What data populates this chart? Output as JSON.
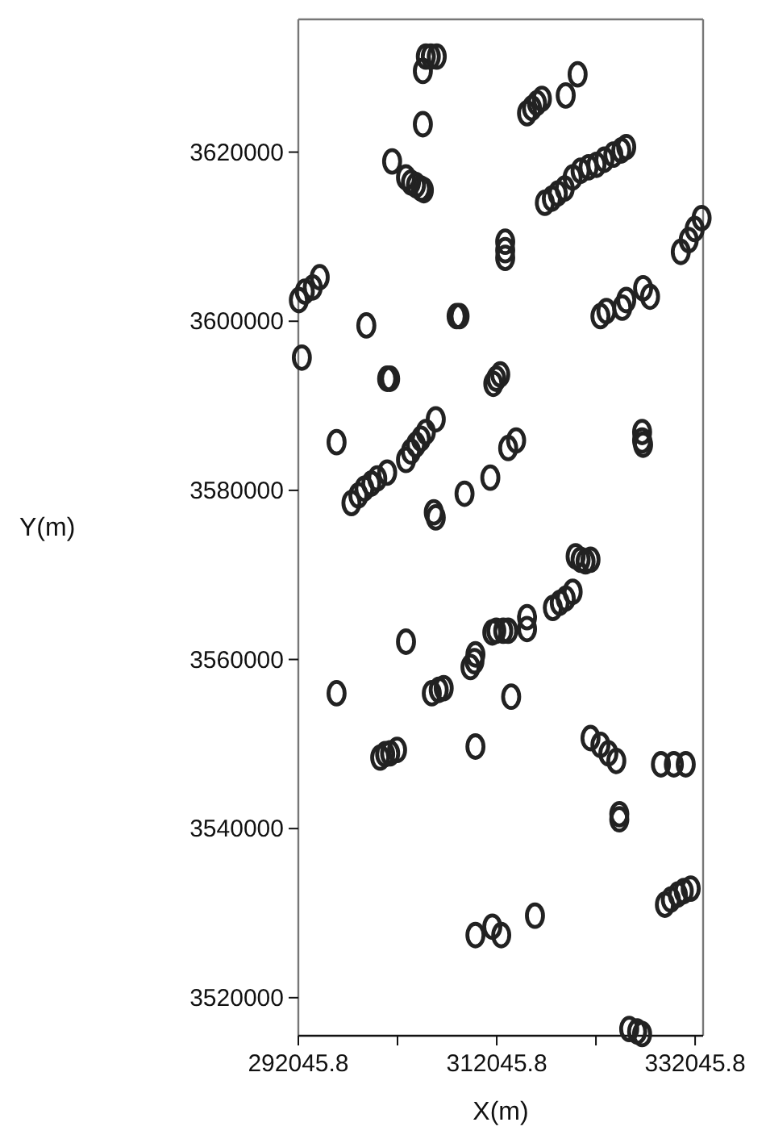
{
  "chart_data": {
    "type": "scatter",
    "xlabel": "X(m)",
    "ylabel": "Y(m)",
    "marker": "circle",
    "grid": false,
    "xlim": [
      292045.8,
      332850
    ],
    "ylim": [
      3515500,
      3635700
    ],
    "xticks": [
      292045.8,
      {
        "value": 302045.8,
        "label": null
      },
      312045.8,
      {
        "value": 322045.8,
        "label": null
      },
      332045.8
    ],
    "yticks": [
      3520000,
      3540000,
      3560000,
      3580000,
      3600000,
      3620000
    ],
    "series": [
      {
        "color": "#222222",
        "x": [
          304600,
          304900,
          305400,
          306000,
          304600,
          301500,
          302900,
          303400,
          303900,
          304400,
          304700,
          315100,
          315600,
          316100,
          316600,
          319000,
          320200,
          316900,
          317600,
          318200,
          318900,
          319700,
          320500,
          321300,
          322100,
          322900,
          323800,
          324600,
          325100,
          312900,
          312900,
          312900,
          292100,
          292700,
          293500,
          294200,
          298900,
          292400,
          308000,
          308300,
          301000,
          301300,
          311700,
          312000,
          312400,
          322500,
          323100,
          324700,
          325100,
          326800,
          327500,
          330600,
          331400,
          332000,
          332700,
          326700,
          326700,
          326800,
          295900,
          305900,
          302900,
          303400,
          303900,
          304400,
          304900,
          301000,
          297400,
          298100,
          298700,
          299400,
          300000,
          305700,
          305900,
          308800,
          311400,
          313200,
          314000,
          320000,
          320500,
          321000,
          321500,
          317700,
          318400,
          319000,
          319700,
          315100,
          315100,
          311600,
          312000,
          312700,
          313200,
          309400,
          309800,
          309900,
          305500,
          306200,
          306700,
          302900,
          295900,
          313500,
          300300,
          300800,
          301300,
          302000,
          309900,
          321500,
          322500,
          323300,
          324100,
          328600,
          329900,
          331100,
          324400,
          324400,
          329000,
          329600,
          330300,
          330900,
          331600,
          309900,
          311600,
          312500,
          315900,
          325400,
          326200,
          326700
        ],
        "values": [
          3629600,
          3631300,
          3631300,
          3631300,
          3623300,
          3618900,
          3617000,
          3616400,
          3616100,
          3615700,
          3615500,
          3624600,
          3625200,
          3625800,
          3626300,
          3626700,
          3629200,
          3614000,
          3614500,
          3615100,
          3615700,
          3617000,
          3617800,
          3618200,
          3618500,
          3619100,
          3619700,
          3620200,
          3620600,
          3609400,
          3608400,
          3607500,
          3602500,
          3603500,
          3604000,
          3605200,
          3599500,
          3595700,
          3600600,
          3600600,
          3593200,
          3593200,
          3592600,
          3593200,
          3593700,
          3600600,
          3601200,
          3601600,
          3602500,
          3603900,
          3602900,
          3608200,
          3609600,
          3610900,
          3612200,
          3586900,
          3585900,
          3585400,
          3585700,
          3588400,
          3583600,
          3584600,
          3585400,
          3586100,
          3586900,
          3582100,
          3578500,
          3579400,
          3580200,
          3580800,
          3581400,
          3577400,
          3576800,
          3579600,
          3581500,
          3585000,
          3585900,
          3572200,
          3571800,
          3571600,
          3571800,
          3566100,
          3566700,
          3567200,
          3568000,
          3565000,
          3563600,
          3563200,
          3563400,
          3563400,
          3563400,
          3559100,
          3559800,
          3560600,
          3556000,
          3556400,
          3556600,
          3562100,
          3556000,
          3555600,
          3548400,
          3548800,
          3548900,
          3549300,
          3549700,
          3550700,
          3549900,
          3548900,
          3548000,
          3547600,
          3547600,
          3547600,
          3541700,
          3541100,
          3531000,
          3531600,
          3532200,
          3532600,
          3532900,
          3527400,
          3528400,
          3527400,
          3529700,
          3516300,
          3516000,
          3515700
        ]
      }
    ]
  }
}
